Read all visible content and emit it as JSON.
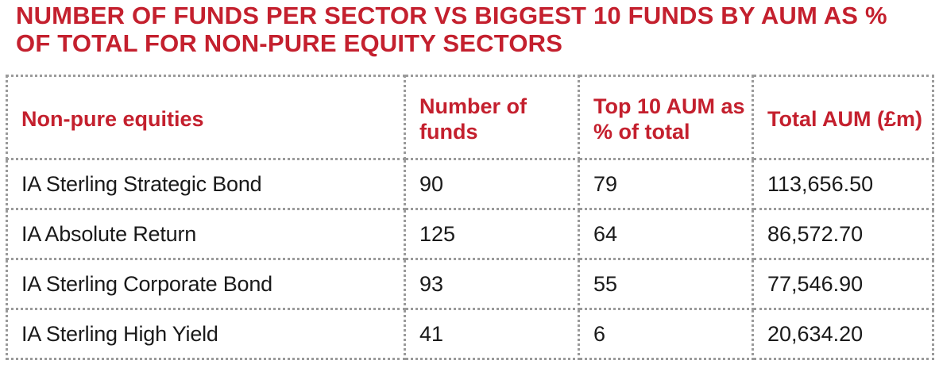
{
  "chart_data": {
    "type": "table",
    "title": "NUMBER OF FUNDS PER SECTOR VS BIGGEST 10 FUNDS BY AUM AS % OF TOTAL FOR NON-PURE EQUITY SECTORS",
    "columns": [
      "Non-pure equities",
      "Number of funds",
      "Top 10 AUM as % of total",
      "Total AUM (£m)"
    ],
    "rows": [
      {
        "sector": "IA Sterling Strategic Bond",
        "number_of_funds": "90",
        "top10_pct": "79",
        "total_aum": "113,656.50"
      },
      {
        "sector": "IA Absolute Return",
        "number_of_funds": "125",
        "top10_pct": "64",
        "total_aum": "86,572.70"
      },
      {
        "sector": "IA Sterling Corporate Bond",
        "number_of_funds": "93",
        "top10_pct": "55",
        "total_aum": "77,546.90"
      },
      {
        "sector": "IA Sterling High Yield",
        "number_of_funds": "41",
        "top10_pct": "6",
        "total_aum": "20,634.20"
      }
    ]
  },
  "colors": {
    "accent": "#c4202e",
    "text": "#1a1a1a",
    "border": "#9a9a9a"
  }
}
